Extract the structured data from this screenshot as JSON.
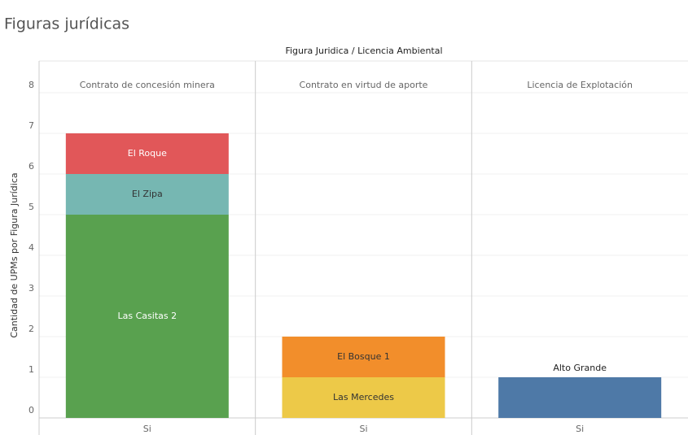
{
  "chart_data": {
    "type": "bar",
    "title": "Figuras jurídicas",
    "header": "Figura Juridica / Licencia Ambiental",
    "ylabel": "Cantidad de UPMs por Figura Jurídica",
    "ylim": [
      0,
      8
    ],
    "yticks": [
      0,
      1,
      2,
      3,
      4,
      5,
      6,
      7,
      8
    ],
    "grid": true,
    "stacked": true,
    "facets": [
      {
        "label": "Contrato de concesión minera",
        "categories": [
          "Si"
        ],
        "series": [
          {
            "name": "Las Casitas 2",
            "color": "#59a14f",
            "values": [
              5
            ]
          },
          {
            "name": "El Zipa",
            "color": "#76b7b2",
            "values": [
              1
            ]
          },
          {
            "name": "El Roque",
            "color": "#e15759",
            "values": [
              1
            ]
          }
        ]
      },
      {
        "label": "Contrato en virtud de aporte",
        "categories": [
          "Si"
        ],
        "series": [
          {
            "name": "Las Mercedes",
            "color": "#edc948",
            "values": [
              1
            ]
          },
          {
            "name": "El Bosque 1",
            "color": "#f28e2b",
            "values": [
              1
            ]
          }
        ]
      },
      {
        "label": "Licencia de Explotación",
        "categories": [
          "Si"
        ],
        "series": [
          {
            "name": "Alto Grande",
            "color": "#4e79a7",
            "values": [
              1
            ],
            "label_position": "outside"
          }
        ]
      }
    ]
  }
}
